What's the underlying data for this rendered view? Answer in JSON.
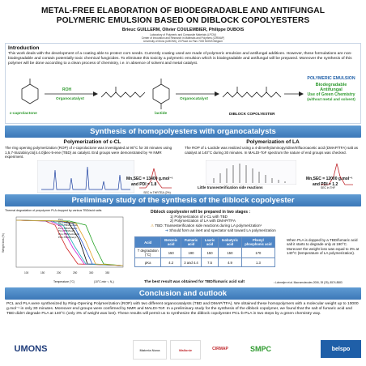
{
  "title": "METAL-FREE ELABORATION OF BIODEGRADABLE AND ANTIFUNGAL POLYMERIC EMULSION BASED ON DIBLOCK COPOLYESTERS",
  "authors": "Brieuc GUILLERM, Olivier COULEMBIER, Philippe DUBOIS",
  "affiliations": [
    "Laboratory of Polymeric and Composite Materials (LPCM)",
    "Center of Innovation and Research in Materials and Polymers (CIRMAP)",
    "University of Mons (UMONS), 23 Place du Parc 7000 MONS Belgium"
  ],
  "introduction": {
    "heading": "Introduction",
    "text": "This work deals with the development of a coating able to protect corn seeds. Currently coating used are made of polymeric emulsion and antifungal additives. However, these formulations are non-biodegradable and contain potentially toxic chemical fungicides. To eliminate this toxicity a polymeric emulsion which is biodegradable and antifungal will be prepared. Moreover the synthesis of this polymer will be done according to a clean process of chemistry, i.e. in absence of solvent and metal catalyst.",
    "scheme": {
      "monomer1": "ε-caprolactone",
      "reagent1": "ROH",
      "catalyst1": "Organocatalyst",
      "monomer2": "lactide",
      "catalyst2": "Organocatalyst",
      "product": "DIBLOCK COPOLYESTER",
      "target": "POLYMERIC EMULSION",
      "properties": [
        "Biodegradable",
        "Antifungal",
        "Use of Green Chemistry",
        "(without metal and solvent)"
      ]
    }
  },
  "homopolyesters": {
    "banner": "Synthesis of homopolyesters with organocatalysts",
    "pcl": {
      "heading": "Polymerization of ε-CL",
      "text": "The ring opening polymerization (ROP) of ε-caprolactone was investigated at 90°C for 30 minutes using 1,5,7-triazabicyclo[4.4.0]dec-5-ene (TBD) as catalyst. End groups were demonstrated by ¹H NMR experiment.",
      "sec_label": "SEC in THF/TEA (2%)",
      "mn": "Mn,SEC = 13400 g.mol⁻¹",
      "pdi": "and PDI = 1.8"
    },
    "pla": {
      "heading": "Polymerization of LA",
      "text": "The ROP of L-Lactide was realized using a 4-dimethylaminopyridine/trifluoroacetic acid (DMAP/TFA) salt as catalyst at 140°C during 30 minutes. In MALDI-ToF spectrum the nature of end groups was checked.",
      "maldi_label": "Little transesterification side reactions",
      "sec_label": "SEC in THF",
      "mn": "Mn,SEC = 12000 g.mol⁻¹",
      "pdi": "and PDI = 1.2"
    }
  },
  "copolyester": {
    "banner": "Preliminary study of the synthesis of the diblock copolyester",
    "plot_title": "Thermal degradation of prepolymer PLA dropped by various TBD/acid salts",
    "plot_ylabel": "Weight loss (%)",
    "plot_xlabel": "Temperature (°C)",
    "plot_legend": [
      "PLA",
      "PLA-TBD/acetic",
      "PLA-TBD/benzoic",
      "PLA-TBD/fumaric",
      "PLA-TBD/lauric",
      "PLA-TBD/isobutyric",
      "PLA-TBD/phenyl"
    ],
    "plot_note": "(10°C.min⁻¹, N₂)",
    "steps_heading": "Diblock copolyester will be prepared in two stages :",
    "steps": [
      "1) Polymerization of ε-CL with TBD",
      "2) Polymerization of LA with DMAP/TFA"
    ],
    "warning": "TBD: Transesterification side reactions during LA polymerization¹",
    "arrow_note": "Should form an inert and spectator salt toward LA polymerization",
    "table": {
      "headers": [
        "Acid",
        "Benzoic acid",
        "Fumaric acid",
        "Lauric acid",
        "Isobutyric acid",
        "Phenyl phosphonic acid"
      ],
      "rows": [
        [
          "T degradation (°C)",
          "150",
          "190",
          "150",
          "150",
          "170"
        ],
        [
          "pKa",
          "4.2",
          "3 and 4.4",
          "7.5",
          "4.9",
          "1.3"
        ]
      ]
    },
    "note": "When PLA is dopped by a TBD/fumaric acid salt it starts to degrade only at 190°C. Moreover the weight loss was equal to 3% at 140°C (temperature of LA polymerization).",
    "result": "The best result was obtained for TBD/fumaric acid salt",
    "reference": "¹ Lohmeijer et al. Macromolecules 2006, 39 (25), 8574-8583"
  },
  "conclusion": {
    "banner": "Conclusion and outlook",
    "text": "PCL and PLA were synthesized by Ring-Opening Polymerization (ROP) with two different organocatalysts (TBD and DMAP/TFA). We obtained these homopolymers with a molecular weight up to 10000 g.mol⁻¹ in only 30 minutes. Moreover end groups were confirmed by NMR and MALDI-ToF. In a preliminary study for the synthesis of the diblock copolymer, we found that the salt of fumaric acid and TBD didn't degrade PLA at 140°C (only 3% of weight was lost). These results will permit us to synthesize the diblock copolyester PCL-b-PLA in two steps by a green chemistry way."
  },
  "logos": [
    "UMONS",
    "Materia Nova",
    "Wallonie",
    "CIRMAP",
    "SMPC",
    "belspo"
  ],
  "colors": {
    "banner": "#4a86c5",
    "accent_green": "#2f9a2f",
    "title_red": "#c0282d"
  }
}
